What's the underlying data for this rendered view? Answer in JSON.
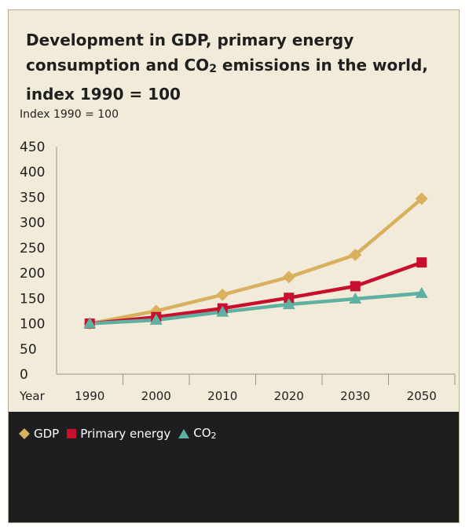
{
  "title": {
    "main": "Development in GDP, primary energy consumption and CO",
    "sub": "2",
    "suffix": " emissions in the world, index 1990 = 100"
  },
  "chart_data": {
    "type": "line",
    "ylabel": "Index 1990 = 100",
    "xlabel": "Year",
    "categories": [
      "1990",
      "2000",
      "2010",
      "2020",
      "2030",
      "2050"
    ],
    "ylim": [
      0,
      450
    ],
    "yticks": [
      0,
      50,
      100,
      150,
      200,
      250,
      300,
      350,
      400,
      450
    ],
    "grid": false,
    "legend_position": "bottom",
    "series": [
      {
        "name": "GDP",
        "marker": "diamond",
        "color": "#d8b05e",
        "values": [
          100,
          125,
          157,
          192,
          236,
          347
        ]
      },
      {
        "name": "Primary energy",
        "marker": "square",
        "color": "#c8102e",
        "values": [
          100,
          113,
          130,
          151,
          174,
          221
        ]
      },
      {
        "name": "CO2",
        "marker": "triangle",
        "color": "#5fb0a0",
        "values": [
          100,
          107,
          123,
          138,
          149,
          160
        ]
      }
    ]
  },
  "legend": {
    "gdp": "GDP",
    "primary": "Primary energy",
    "co2_main": "CO",
    "co2_sub": "2"
  }
}
